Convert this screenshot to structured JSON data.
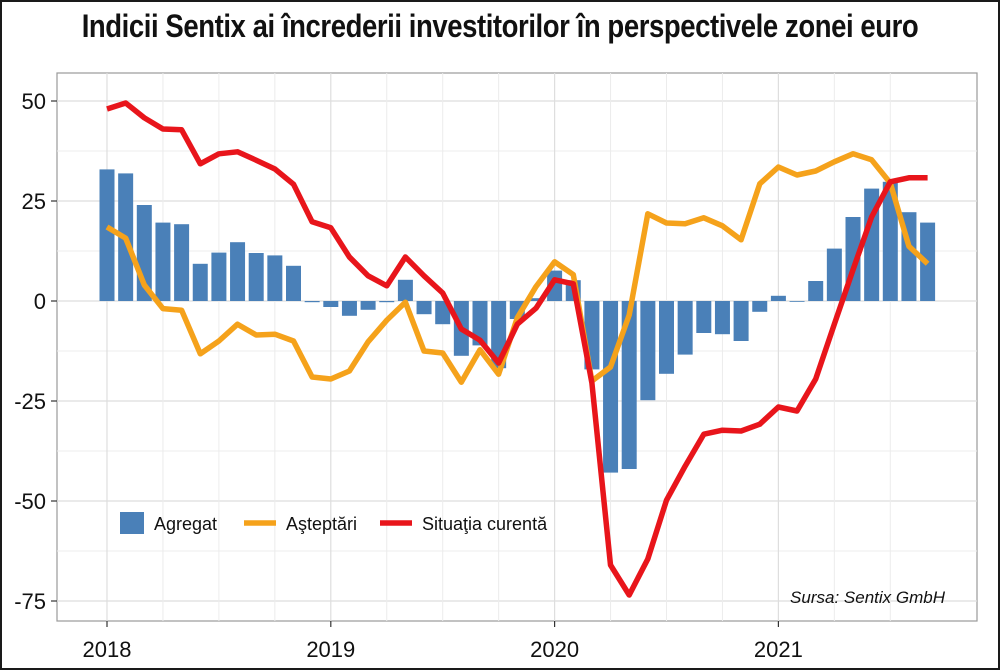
{
  "chart_data": {
    "type": "bar+line",
    "title": "Indicii Sentix ai încrederii investitorilor în perspectivele zonei euro",
    "source": "Sursa: Sentix GmbH",
    "ylim": [
      -80,
      57
    ],
    "y_ticks": [
      {
        "value": 50,
        "label": "50"
      },
      {
        "value": 25,
        "label": "25"
      },
      {
        "value": 0,
        "label": "0"
      },
      {
        "value": -25,
        "label": "-25"
      },
      {
        "value": -50,
        "label": "-50"
      },
      {
        "value": -75,
        "label": "-75"
      }
    ],
    "x_ticks": [
      {
        "index": 0,
        "label": "2018"
      },
      {
        "index": 12,
        "label": "2019"
      },
      {
        "index": 24,
        "label": "2020"
      },
      {
        "index": 36,
        "label": "2021"
      }
    ],
    "months": 45,
    "series": [
      {
        "name": "Agregat",
        "kind": "bar",
        "color": "#4a80b8",
        "values": [
          32.9,
          31.9,
          24.0,
          19.6,
          19.2,
          9.3,
          12.1,
          14.7,
          12.0,
          11.4,
          8.8,
          -0.3,
          -1.5,
          -3.7,
          -2.2,
          -0.3,
          5.3,
          -3.3,
          -5.8,
          -13.7,
          -11.1,
          -16.8,
          -4.5,
          0.7,
          7.6,
          5.2,
          -17.1,
          -42.9,
          -42.0,
          -24.8,
          -18.2,
          -13.4,
          -8.0,
          -8.3,
          -10.0,
          -2.7,
          1.3,
          -0.2,
          5.0,
          13.1,
          21.0,
          28.1,
          29.8,
          22.2,
          19.6
        ]
      },
      {
        "name": "Aşteptări",
        "kind": "line",
        "color": "#f5a21b",
        "values": [
          18.5,
          15.7,
          4.0,
          -1.9,
          -2.3,
          -13.2,
          -10.0,
          -5.8,
          -8.5,
          -8.3,
          -10.0,
          -19.0,
          -19.5,
          -17.5,
          -10.2,
          -4.8,
          -0.3,
          -12.5,
          -13.0,
          -20.3,
          -12.2,
          -18.3,
          -4.2,
          3.6,
          9.8,
          6.6,
          -20.0,
          -16.5,
          -3.5,
          21.8,
          19.5,
          19.3,
          20.8,
          18.8,
          15.3,
          29.3,
          33.5,
          31.5,
          32.5,
          34.8,
          36.8,
          35.3,
          29.5,
          13.7,
          9.3
        ]
      },
      {
        "name": "Situaţia curentă",
        "kind": "line",
        "color": "#e8151b",
        "values": [
          48.0,
          49.5,
          45.8,
          43.0,
          42.8,
          34.3,
          36.8,
          37.3,
          35.2,
          33.0,
          29.2,
          19.8,
          18.3,
          11.0,
          6.3,
          3.8,
          11.0,
          6.3,
          2.0,
          -7.0,
          -9.8,
          -15.5,
          -5.8,
          -1.8,
          5.3,
          4.3,
          -20.5,
          -66.0,
          -73.5,
          -64.5,
          -49.8,
          -41.3,
          -33.3,
          -32.3,
          -32.5,
          -30.8,
          -26.5,
          -27.5,
          -19.5,
          -5.8,
          7.8,
          21.0,
          29.8,
          30.8,
          30.8
        ]
      }
    ]
  }
}
